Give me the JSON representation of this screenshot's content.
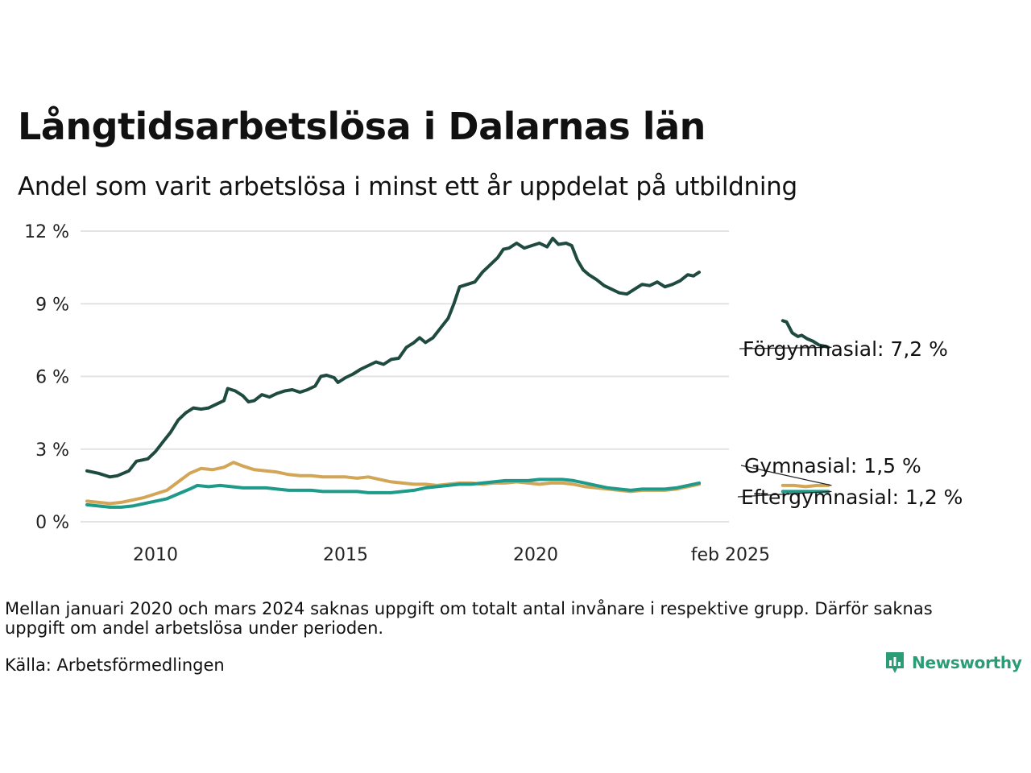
{
  "title": "Långtidsarbetslösa i Dalarnas län",
  "subtitle": "Andel som varit arbetslösa i minst ett år uppdelat på utbildning",
  "note": "Mellan januari 2020 och mars 2024 saknas uppgift om totalt antal invånare i respektive grupp. Därför saknas uppgift om andel arbetslösa under perioden.",
  "source": "Källa: Arbetsförmedlingen",
  "logo_text": "Newsworthy",
  "colors": {
    "forgymnasial": "#1f4a3f",
    "gymnasial": "#d2a656",
    "eftergymnasial": "#1e9a8a",
    "grid": "#e3e3e3",
    "logo": "#2a9d77"
  },
  "chart_data": {
    "type": "line",
    "ylim": [
      0,
      12
    ],
    "y_ticks": [
      0,
      3,
      6,
      9,
      12
    ],
    "y_tick_labels": [
      "0 %",
      "3 %",
      "6 %",
      "9 %",
      "12 %"
    ],
    "x_ticks": [
      2010,
      2015,
      2020,
      2025.125
    ],
    "x_tick_labels": [
      "2010",
      "2015",
      "2020",
      "feb 2025"
    ],
    "grid": "horizontal",
    "end_labels": [
      {
        "series": "Förgymnasial",
        "text": "Förgymnasial: 7,2 %"
      },
      {
        "series": "Gymnasial",
        "text": "Gymnasial: 1,5 %"
      },
      {
        "series": "Eftergymnasial",
        "text": "Eftergymnasial: 1,2 %"
      }
    ],
    "series": [
      {
        "name": "Förgymnasial",
        "color": "#1f4a3f",
        "segments": [
          [
            [
              2008.2,
              2.1
            ],
            [
              2008.5,
              2.0
            ],
            [
              2008.8,
              1.85
            ],
            [
              2009.0,
              1.9
            ],
            [
              2009.3,
              2.1
            ],
            [
              2009.5,
              2.5
            ],
            [
              2009.8,
              2.6
            ],
            [
              2010.0,
              2.9
            ],
            [
              2010.2,
              3.3
            ],
            [
              2010.4,
              3.7
            ],
            [
              2010.6,
              4.2
            ],
            [
              2010.8,
              4.5
            ],
            [
              2011.0,
              4.7
            ],
            [
              2011.2,
              4.65
            ],
            [
              2011.4,
              4.7
            ],
            [
              2011.6,
              4.85
            ],
            [
              2011.8,
              5.0
            ],
            [
              2011.9,
              5.5
            ],
            [
              2012.1,
              5.4
            ],
            [
              2012.3,
              5.2
            ],
            [
              2012.45,
              4.95
            ],
            [
              2012.6,
              5.0
            ],
            [
              2012.8,
              5.25
            ],
            [
              2013.0,
              5.15
            ],
            [
              2013.2,
              5.3
            ],
            [
              2013.4,
              5.4
            ],
            [
              2013.6,
              5.45
            ],
            [
              2013.8,
              5.35
            ],
            [
              2014.0,
              5.45
            ],
            [
              2014.2,
              5.6
            ],
            [
              2014.35,
              6.0
            ],
            [
              2014.5,
              6.05
            ],
            [
              2014.7,
              5.95
            ],
            [
              2014.8,
              5.75
            ],
            [
              2015.0,
              5.95
            ],
            [
              2015.2,
              6.1
            ],
            [
              2015.4,
              6.3
            ],
            [
              2015.6,
              6.45
            ],
            [
              2015.8,
              6.6
            ],
            [
              2016.0,
              6.5
            ],
            [
              2016.2,
              6.7
            ],
            [
              2016.4,
              6.75
            ],
            [
              2016.6,
              7.2
            ],
            [
              2016.8,
              7.4
            ],
            [
              2016.95,
              7.6
            ],
            [
              2017.1,
              7.4
            ],
            [
              2017.3,
              7.6
            ],
            [
              2017.5,
              8.0
            ],
            [
              2017.7,
              8.4
            ],
            [
              2017.85,
              9.0
            ],
            [
              2018.0,
              9.7
            ],
            [
              2018.2,
              9.8
            ],
            [
              2018.4,
              9.9
            ],
            [
              2018.6,
              10.3
            ],
            [
              2018.8,
              10.6
            ],
            [
              2019.0,
              10.9
            ],
            [
              2019.15,
              11.25
            ],
            [
              2019.3,
              11.3
            ],
            [
              2019.5,
              11.5
            ],
            [
              2019.7,
              11.3
            ],
            [
              2019.9,
              11.4
            ],
            [
              2020.1,
              11.5
            ],
            [
              2020.3,
              11.35
            ],
            [
              2020.45,
              11.7
            ],
            [
              2020.6,
              11.45
            ],
            [
              2020.8,
              11.5
            ],
            [
              2020.95,
              11.4
            ],
            [
              2021.1,
              10.8
            ],
            [
              2021.25,
              10.4
            ],
            [
              2021.4,
              10.2
            ],
            [
              2021.6,
              10.0
            ],
            [
              2021.8,
              9.75
            ],
            [
              2022.0,
              9.6
            ],
            [
              2022.2,
              9.45
            ],
            [
              2022.4,
              9.4
            ],
            [
              2022.6,
              9.6
            ],
            [
              2022.8,
              9.8
            ],
            [
              2023.0,
              9.75
            ],
            [
              2023.2,
              9.9
            ],
            [
              2023.4,
              9.7
            ],
            [
              2023.6,
              9.8
            ],
            [
              2023.8,
              9.95
            ],
            [
              2024.0,
              10.2
            ],
            [
              2024.15,
              10.15
            ],
            [
              2024.3,
              10.3
            ]
          ],
          [
            [
              2026.5,
              8.3
            ],
            [
              2026.6,
              8.25
            ],
            [
              2026.75,
              7.8
            ],
            [
              2026.9,
              7.65
            ],
            [
              2027.0,
              7.7
            ],
            [
              2027.15,
              7.55
            ],
            [
              2027.3,
              7.45
            ],
            [
              2027.45,
              7.3
            ],
            [
              2027.6,
              7.25
            ],
            [
              2027.7,
              7.2
            ]
          ]
        ]
      },
      {
        "name": "Gymnasial",
        "color": "#d2a656",
        "segments": [
          [
            [
              2008.2,
              0.85
            ],
            [
              2008.5,
              0.8
            ],
            [
              2008.8,
              0.75
            ],
            [
              2009.1,
              0.8
            ],
            [
              2009.4,
              0.9
            ],
            [
              2009.7,
              1.0
            ],
            [
              2010.0,
              1.15
            ],
            [
              2010.3,
              1.3
            ],
            [
              2010.6,
              1.65
            ],
            [
              2010.9,
              2.0
            ],
            [
              2011.2,
              2.2
            ],
            [
              2011.5,
              2.15
            ],
            [
              2011.8,
              2.25
            ],
            [
              2012.05,
              2.45
            ],
            [
              2012.3,
              2.3
            ],
            [
              2012.6,
              2.15
            ],
            [
              2012.9,
              2.1
            ],
            [
              2013.2,
              2.05
            ],
            [
              2013.5,
              1.95
            ],
            [
              2013.8,
              1.9
            ],
            [
              2014.1,
              1.9
            ],
            [
              2014.4,
              1.85
            ],
            [
              2014.7,
              1.85
            ],
            [
              2015.0,
              1.85
            ],
            [
              2015.3,
              1.8
            ],
            [
              2015.6,
              1.85
            ],
            [
              2015.9,
              1.75
            ],
            [
              2016.2,
              1.65
            ],
            [
              2016.5,
              1.6
            ],
            [
              2016.8,
              1.55
            ],
            [
              2017.1,
              1.55
            ],
            [
              2017.4,
              1.5
            ],
            [
              2017.7,
              1.55
            ],
            [
              2018.0,
              1.6
            ],
            [
              2018.3,
              1.6
            ],
            [
              2018.6,
              1.55
            ],
            [
              2018.9,
              1.6
            ],
            [
              2019.2,
              1.6
            ],
            [
              2019.5,
              1.65
            ],
            [
              2019.8,
              1.6
            ],
            [
              2020.1,
              1.55
            ],
            [
              2020.4,
              1.6
            ],
            [
              2020.7,
              1.6
            ],
            [
              2021.0,
              1.55
            ],
            [
              2021.3,
              1.45
            ],
            [
              2021.6,
              1.4
            ],
            [
              2021.9,
              1.35
            ],
            [
              2022.2,
              1.3
            ],
            [
              2022.5,
              1.25
            ],
            [
              2022.8,
              1.3
            ],
            [
              2023.1,
              1.3
            ],
            [
              2023.4,
              1.3
            ],
            [
              2023.7,
              1.35
            ],
            [
              2024.0,
              1.45
            ],
            [
              2024.3,
              1.55
            ]
          ],
          [
            [
              2026.5,
              1.5
            ],
            [
              2026.8,
              1.5
            ],
            [
              2027.1,
              1.45
            ],
            [
              2027.4,
              1.5
            ],
            [
              2027.7,
              1.5
            ]
          ]
        ]
      },
      {
        "name": "Eftergymnasial",
        "color": "#1e9a8a",
        "segments": [
          [
            [
              2008.2,
              0.7
            ],
            [
              2008.5,
              0.65
            ],
            [
              2008.8,
              0.6
            ],
            [
              2009.1,
              0.6
            ],
            [
              2009.4,
              0.65
            ],
            [
              2009.7,
              0.75
            ],
            [
              2010.0,
              0.85
            ],
            [
              2010.3,
              0.95
            ],
            [
              2010.6,
              1.15
            ],
            [
              2010.9,
              1.35
            ],
            [
              2011.1,
              1.5
            ],
            [
              2011.4,
              1.45
            ],
            [
              2011.7,
              1.5
            ],
            [
              2012.0,
              1.45
            ],
            [
              2012.3,
              1.4
            ],
            [
              2012.6,
              1.4
            ],
            [
              2012.9,
              1.4
            ],
            [
              2013.2,
              1.35
            ],
            [
              2013.5,
              1.3
            ],
            [
              2013.8,
              1.3
            ],
            [
              2014.1,
              1.3
            ],
            [
              2014.4,
              1.25
            ],
            [
              2014.7,
              1.25
            ],
            [
              2015.0,
              1.25
            ],
            [
              2015.3,
              1.25
            ],
            [
              2015.6,
              1.2
            ],
            [
              2015.9,
              1.2
            ],
            [
              2016.2,
              1.2
            ],
            [
              2016.5,
              1.25
            ],
            [
              2016.8,
              1.3
            ],
            [
              2017.1,
              1.4
            ],
            [
              2017.4,
              1.45
            ],
            [
              2017.7,
              1.5
            ],
            [
              2018.0,
              1.55
            ],
            [
              2018.3,
              1.55
            ],
            [
              2018.6,
              1.6
            ],
            [
              2018.9,
              1.65
            ],
            [
              2019.2,
              1.7
            ],
            [
              2019.5,
              1.7
            ],
            [
              2019.8,
              1.7
            ],
            [
              2020.1,
              1.75
            ],
            [
              2020.4,
              1.75
            ],
            [
              2020.7,
              1.75
            ],
            [
              2021.0,
              1.7
            ],
            [
              2021.3,
              1.6
            ],
            [
              2021.6,
              1.5
            ],
            [
              2021.9,
              1.4
            ],
            [
              2022.2,
              1.35
            ],
            [
              2022.5,
              1.3
            ],
            [
              2022.8,
              1.35
            ],
            [
              2023.1,
              1.35
            ],
            [
              2023.4,
              1.35
            ],
            [
              2023.7,
              1.4
            ],
            [
              2024.0,
              1.5
            ],
            [
              2024.3,
              1.6
            ]
          ],
          [
            [
              2026.5,
              1.25
            ],
            [
              2026.8,
              1.25
            ],
            [
              2027.1,
              1.25
            ],
            [
              2027.4,
              1.25
            ],
            [
              2027.7,
              1.25
            ]
          ]
        ]
      }
    ]
  }
}
